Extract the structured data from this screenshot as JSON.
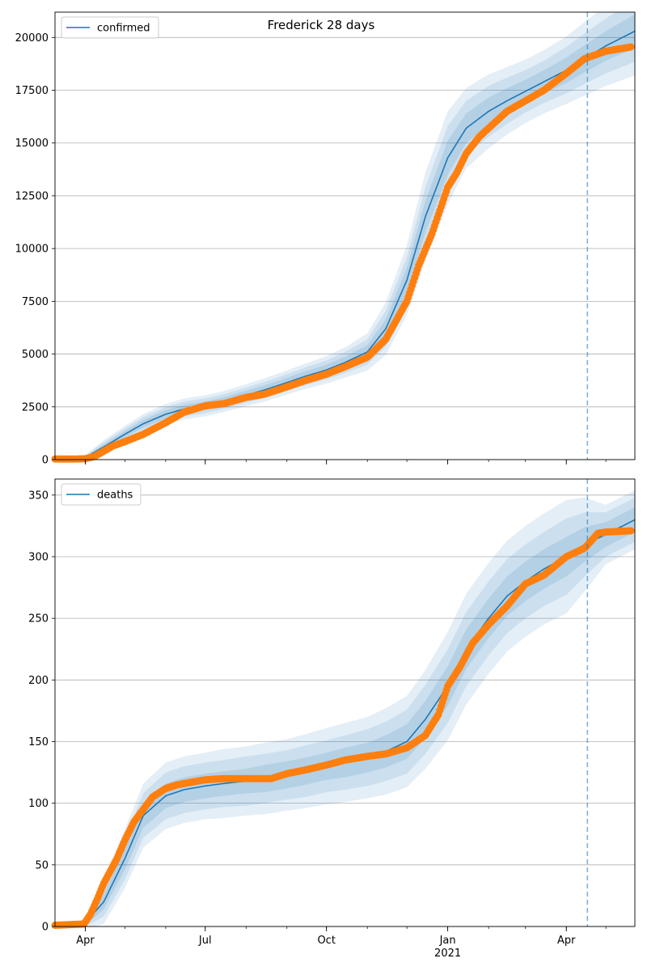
{
  "figure": {
    "title": "Frederick 28 days"
  },
  "x_axis": {
    "ticks": [
      {
        "date": "2020-04-01",
        "label": "Apr",
        "sublabel": ""
      },
      {
        "date": "2020-07-01",
        "label": "Jul",
        "sublabel": ""
      },
      {
        "date": "2020-10-01",
        "label": "Oct",
        "sublabel": ""
      },
      {
        "date": "2021-01-01",
        "label": "Jan",
        "sublabel": "2021"
      },
      {
        "date": "2021-04-01",
        "label": "Apr",
        "sublabel": ""
      }
    ],
    "range": [
      "2020-03-09",
      "2021-05-23"
    ]
  },
  "forecast_marker_date": "2021-04-17",
  "colors": {
    "model_line": "#1f77b4",
    "observed": "#ff7f0e",
    "band": "#1f77b4",
    "grid": "#b0b0b0",
    "forecast_marker": "#1f77b4"
  },
  "chart_data": [
    {
      "type": "line",
      "panel": "top",
      "title": "",
      "xlabel": "",
      "ylabel": "",
      "legend": {
        "label": "confirmed",
        "placement": "top-left"
      },
      "ylim": [
        0,
        21200
      ],
      "yticks": [
        0,
        2500,
        5000,
        7500,
        10000,
        12500,
        15000,
        17500,
        20000
      ],
      "grid": "y",
      "model_x": [
        "2020-03-09",
        "2020-03-20",
        "2020-04-01",
        "2020-04-15",
        "2020-05-01",
        "2020-05-15",
        "2020-06-01",
        "2020-06-15",
        "2020-07-01",
        "2020-07-15",
        "2020-08-01",
        "2020-08-15",
        "2020-09-01",
        "2020-09-15",
        "2020-10-01",
        "2020-10-15",
        "2020-11-01",
        "2020-11-15",
        "2020-12-01",
        "2020-12-15",
        "2021-01-01",
        "2021-01-15",
        "2021-02-01",
        "2021-02-15",
        "2021-03-01",
        "2021-03-15",
        "2021-04-01",
        "2021-04-15",
        "2021-05-01",
        "2021-05-23"
      ],
      "model": [
        0,
        10,
        100,
        600,
        1200,
        1700,
        2150,
        2400,
        2550,
        2750,
        3050,
        3300,
        3650,
        3950,
        4250,
        4600,
        5100,
        6200,
        8500,
        11500,
        14300,
        15700,
        16500,
        17000,
        17450,
        17900,
        18450,
        19000,
        19600,
        20300
      ],
      "band_50": [
        0,
        5,
        40,
        120,
        160,
        180,
        200,
        200,
        200,
        200,
        210,
        220,
        230,
        240,
        250,
        270,
        320,
        450,
        600,
        750,
        800,
        700,
        650,
        600,
        550,
        550,
        600,
        650,
        700,
        800
      ],
      "band_80": [
        0,
        10,
        80,
        220,
        280,
        320,
        340,
        350,
        350,
        350,
        360,
        380,
        400,
        420,
        450,
        500,
        600,
        850,
        1100,
        1400,
        1500,
        1300,
        1200,
        1100,
        1000,
        1000,
        1100,
        1200,
        1300,
        1450
      ],
      "band_95": [
        0,
        15,
        120,
        320,
        400,
        460,
        490,
        500,
        500,
        500,
        520,
        550,
        570,
        600,
        650,
        720,
        880,
        1250,
        1650,
        2100,
        2200,
        1900,
        1750,
        1600,
        1500,
        1500,
        1600,
        1750,
        1900,
        2100
      ],
      "observed_x": [
        "2020-03-09",
        "2020-03-25",
        "2020-04-01",
        "2020-04-08",
        "2020-04-15",
        "2020-04-22",
        "2020-05-01",
        "2020-05-15",
        "2020-06-01",
        "2020-06-15",
        "2020-07-01",
        "2020-07-15",
        "2020-08-01",
        "2020-08-15",
        "2020-09-01",
        "2020-09-15",
        "2020-10-01",
        "2020-10-15",
        "2020-11-01",
        "2020-11-15",
        "2020-12-01",
        "2020-12-10",
        "2020-12-20",
        "2021-01-01",
        "2021-01-08",
        "2021-01-15",
        "2021-01-25",
        "2021-02-01",
        "2021-02-15",
        "2021-03-01",
        "2021-03-15",
        "2021-04-01",
        "2021-04-15",
        "2021-05-01",
        "2021-05-20"
      ],
      "observed": [
        30,
        30,
        40,
        150,
        400,
        650,
        850,
        1200,
        1750,
        2250,
        2550,
        2650,
        2950,
        3100,
        3450,
        3750,
        4050,
        4400,
        4850,
        5700,
        7500,
        9200,
        10700,
        12900,
        13600,
        14500,
        15300,
        15700,
        16500,
        17000,
        17500,
        18300,
        19000,
        19350,
        19550
      ]
    },
    {
      "type": "line",
      "panel": "bottom",
      "title": "",
      "xlabel": "",
      "ylabel": "",
      "legend": {
        "label": "deaths",
        "placement": "top-left"
      },
      "ylim": [
        0,
        363
      ],
      "yticks": [
        0,
        50,
        100,
        150,
        200,
        250,
        300,
        350
      ],
      "grid": "y",
      "model_x": [
        "2020-03-09",
        "2020-03-25",
        "2020-04-01",
        "2020-04-15",
        "2020-05-01",
        "2020-05-15",
        "2020-06-01",
        "2020-06-15",
        "2020-07-01",
        "2020-07-15",
        "2020-08-01",
        "2020-08-15",
        "2020-09-01",
        "2020-09-15",
        "2020-10-01",
        "2020-10-15",
        "2020-11-01",
        "2020-11-15",
        "2020-12-01",
        "2020-12-15",
        "2021-01-01",
        "2021-01-15",
        "2021-02-01",
        "2021-02-15",
        "2021-03-01",
        "2021-03-15",
        "2021-04-01",
        "2021-04-15",
        "2021-05-01",
        "2021-05-23"
      ],
      "model": [
        0,
        0,
        3,
        20,
        55,
        90,
        106,
        111,
        114,
        116,
        118,
        120,
        123,
        126,
        130,
        133,
        137,
        142,
        150,
        168,
        195,
        225,
        250,
        268,
        280,
        290,
        300,
        310,
        318,
        330
      ],
      "band_50": [
        0,
        0,
        2,
        6,
        9,
        10,
        10,
        10,
        10,
        10,
        10,
        11,
        11,
        11,
        11,
        12,
        12,
        13,
        14,
        15,
        16,
        16,
        16,
        16,
        16,
        16,
        16,
        14,
        10,
        10
      ],
      "band_80": [
        0,
        0,
        3,
        12,
        17,
        18,
        19,
        19,
        19,
        19,
        20,
        20,
        20,
        21,
        21,
        22,
        23,
        24,
        26,
        28,
        30,
        30,
        30,
        30,
        30,
        30,
        31,
        26,
        18,
        18
      ],
      "band_95": [
        0,
        0,
        5,
        18,
        24,
        26,
        27,
        27,
        27,
        28,
        28,
        29,
        29,
        30,
        31,
        32,
        33,
        35,
        37,
        40,
        44,
        45,
        45,
        45,
        45,
        45,
        46,
        38,
        24,
        24
      ],
      "observed_x": [
        "2020-03-09",
        "2020-03-31",
        "2020-04-05",
        "2020-04-10",
        "2020-04-15",
        "2020-04-20",
        "2020-04-25",
        "2020-05-01",
        "2020-05-08",
        "2020-05-15",
        "2020-05-22",
        "2020-06-01",
        "2020-06-10",
        "2020-06-20",
        "2020-07-01",
        "2020-07-15",
        "2020-08-01",
        "2020-08-20",
        "2020-09-01",
        "2020-09-15",
        "2020-10-01",
        "2020-10-15",
        "2020-11-01",
        "2020-11-15",
        "2020-12-01",
        "2020-12-15",
        "2020-12-25",
        "2021-01-01",
        "2021-01-10",
        "2021-01-20",
        "2021-02-01",
        "2021-02-15",
        "2021-03-01",
        "2021-03-15",
        "2021-04-01",
        "2021-04-15",
        "2021-04-25",
        "2021-05-01",
        "2021-05-20"
      ],
      "observed": [
        1,
        2,
        10,
        22,
        35,
        45,
        55,
        70,
        85,
        95,
        105,
        112,
        115,
        117,
        119,
        120,
        120,
        120,
        124,
        127,
        131,
        135,
        138,
        140,
        145,
        155,
        172,
        195,
        210,
        230,
        245,
        260,
        278,
        285,
        300,
        307,
        319,
        320,
        321
      ]
    }
  ]
}
